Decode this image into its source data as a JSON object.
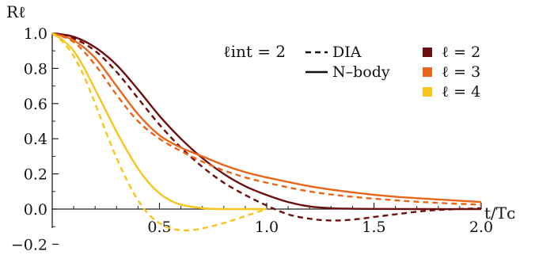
{
  "chart_data": {
    "type": "line",
    "xlabel": "t/Tᴄ",
    "ylabel": "Rℓ",
    "xlim": [
      0,
      2.0
    ],
    "ylim": [
      -0.2,
      1.02
    ],
    "x_ticks": [
      "0.5",
      "1.0",
      "1.5",
      "2.0"
    ],
    "y_ticks": [
      "−0.2",
      "0.0",
      "0.2",
      "0.4",
      "0.6",
      "0.8",
      "1.0"
    ],
    "grid": false,
    "annotation": "ℓint = 2",
    "legend_position": "top-right",
    "linestyle_legend": [
      {
        "label": "DIA",
        "style": "dashed"
      },
      {
        "label": "N–body",
        "style": "solid"
      }
    ],
    "series": [
      {
        "name": "ℓ = 2",
        "color": "#6b0f10",
        "model": "N-body",
        "x": [
          0.0,
          0.1,
          0.2,
          0.3,
          0.4,
          0.5,
          0.6,
          0.7,
          0.8,
          0.9,
          1.0,
          1.1,
          1.2,
          1.3,
          1.4,
          1.5,
          1.7,
          2.0
        ],
        "y": [
          1.0,
          0.98,
          0.92,
          0.82,
          0.68,
          0.53,
          0.4,
          0.29,
          0.2,
          0.13,
          0.08,
          0.04,
          0.015,
          0.005,
          0.002,
          0.001,
          0.0,
          0.0
        ]
      },
      {
        "name": "ℓ = 2",
        "color": "#6b0f10",
        "model": "DIA",
        "x": [
          0.0,
          0.1,
          0.2,
          0.3,
          0.4,
          0.5,
          0.6,
          0.7,
          0.8,
          0.9,
          1.0,
          1.1,
          1.2,
          1.3,
          1.4,
          1.5,
          1.6,
          1.7,
          1.8,
          2.0
        ],
        "y": [
          1.0,
          0.97,
          0.9,
          0.78,
          0.63,
          0.48,
          0.35,
          0.24,
          0.15,
          0.08,
          0.02,
          -0.03,
          -0.055,
          -0.065,
          -0.06,
          -0.045,
          -0.03,
          -0.015,
          -0.005,
          0.005
        ]
      },
      {
        "name": "ℓ = 3",
        "color": "#e8651a",
        "model": "N-body",
        "x": [
          0.0,
          0.1,
          0.2,
          0.3,
          0.4,
          0.5,
          0.6,
          0.7,
          0.8,
          0.9,
          1.0,
          1.2,
          1.4,
          1.6,
          1.8,
          2.0
        ],
        "y": [
          1.0,
          0.96,
          0.86,
          0.7,
          0.54,
          0.42,
          0.35,
          0.3,
          0.25,
          0.21,
          0.18,
          0.13,
          0.095,
          0.07,
          0.055,
          0.04
        ]
      },
      {
        "name": "ℓ = 3",
        "color": "#e8651a",
        "model": "DIA",
        "x": [
          0.0,
          0.1,
          0.2,
          0.3,
          0.4,
          0.5,
          0.6,
          0.7,
          0.8,
          0.9,
          1.0,
          1.2,
          1.4,
          1.6,
          1.8,
          2.0
        ],
        "y": [
          1.0,
          0.95,
          0.82,
          0.65,
          0.5,
          0.4,
          0.33,
          0.27,
          0.22,
          0.18,
          0.15,
          0.1,
          0.07,
          0.05,
          0.035,
          0.025
        ]
      },
      {
        "name": "ℓ = 4",
        "color": "#f7c51d",
        "model": "N-body",
        "x": [
          0.0,
          0.05,
          0.1,
          0.15,
          0.2,
          0.25,
          0.3,
          0.35,
          0.4,
          0.45,
          0.5,
          0.55,
          0.6,
          0.7,
          0.8,
          0.9,
          1.0
        ],
        "y": [
          1.0,
          0.96,
          0.9,
          0.8,
          0.68,
          0.56,
          0.44,
          0.33,
          0.23,
          0.15,
          0.09,
          0.05,
          0.025,
          0.005,
          0.0,
          0.0,
          0.0
        ]
      },
      {
        "name": "ℓ = 4",
        "color": "#f7c51d",
        "model": "DIA",
        "x": [
          0.0,
          0.05,
          0.1,
          0.15,
          0.2,
          0.25,
          0.3,
          0.35,
          0.4,
          0.45,
          0.5,
          0.55,
          0.6,
          0.65,
          0.7,
          0.8,
          0.9,
          1.0
        ],
        "y": [
          1.0,
          0.95,
          0.87,
          0.75,
          0.6,
          0.44,
          0.29,
          0.16,
          0.05,
          -0.03,
          -0.08,
          -0.11,
          -0.12,
          -0.12,
          -0.11,
          -0.08,
          -0.04,
          0.0
        ]
      }
    ]
  }
}
